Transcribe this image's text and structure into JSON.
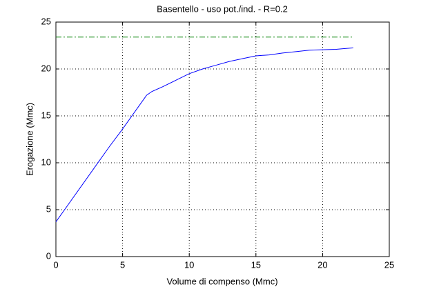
{
  "chart_data": {
    "type": "line",
    "title": "Basentello  -  uso pot./ind.  -   R=0.2",
    "xlabel": "Volume di compenso (Mmc)",
    "ylabel": "Erogazione (Mmc)",
    "series": [
      {
        "color": "#0000ff",
        "linestyle": "solid",
        "x": [
          0,
          1,
          2,
          3,
          4,
          5,
          6,
          6.8,
          7.2,
          8,
          9,
          10,
          11,
          12,
          13,
          14,
          15,
          16,
          17,
          18,
          19,
          20,
          21,
          22.3
        ],
        "values": [
          3.7,
          5.7,
          7.7,
          9.7,
          11.7,
          13.6,
          15.6,
          17.2,
          17.6,
          18.1,
          18.8,
          19.5,
          20.0,
          20.4,
          20.8,
          21.1,
          21.4,
          21.5,
          21.7,
          21.85,
          22.0,
          22.05,
          22.1,
          22.25
        ]
      },
      {
        "color": "#008000",
        "linestyle": "dashdot",
        "x": [
          0,
          22.3
        ],
        "values": [
          23.4,
          23.4
        ]
      }
    ],
    "xlim": [
      0,
      25
    ],
    "xticks": [
      0,
      5,
      10,
      15,
      20,
      25
    ],
    "ylim": [
      0,
      25
    ],
    "yticks": [
      0,
      5,
      10,
      15,
      20,
      25
    ],
    "grid": true
  }
}
